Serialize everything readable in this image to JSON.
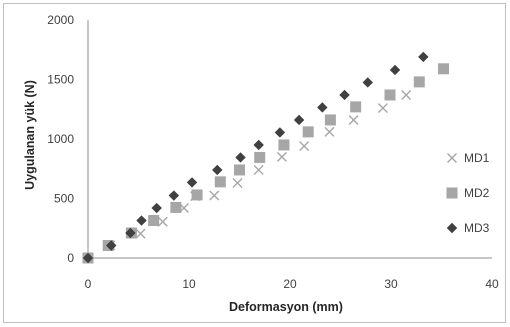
{
  "chart_data": {
    "type": "scatter",
    "title": "",
    "xlabel": "Deformasyon (mm)",
    "ylabel": "Uygulanan yük (N)",
    "xlim": [
      0,
      40
    ],
    "ylim": [
      0,
      2000
    ],
    "xticks": [
      0,
      10,
      20,
      30,
      40
    ],
    "yticks": [
      0,
      500,
      1000,
      1500,
      2000
    ],
    "grid": false,
    "legend": "right",
    "series": [
      {
        "name": "MD1",
        "marker": "x",
        "color": "#a6a6a6",
        "x": [
          0,
          2.2,
          4.3,
          5.2,
          7.4,
          9.5,
          10.6,
          12.5,
          14.8,
          16.9,
          19.2,
          21.4,
          23.9,
          26.3,
          29.2,
          31.5
        ],
        "y": [
          0,
          105,
          210,
          205,
          305,
          420,
          520,
          525,
          630,
          740,
          850,
          940,
          1060,
          1160,
          1260,
          1370
        ]
      },
      {
        "name": "MD2",
        "marker": "square",
        "color": "#a6a6a6",
        "x": [
          0,
          2.0,
          4.3,
          6.5,
          8.7,
          10.8,
          13.1,
          15.0,
          17.0,
          19.4,
          21.8,
          24.0,
          26.5,
          29.9,
          32.8,
          35.2
        ],
        "y": [
          0,
          105,
          210,
          315,
          425,
          530,
          640,
          740,
          845,
          950,
          1060,
          1160,
          1270,
          1370,
          1480,
          1590
        ]
      },
      {
        "name": "MD3",
        "marker": "diamond",
        "color": "#404040",
        "x": [
          0,
          2.3,
          4.2,
          5.3,
          6.8,
          8.5,
          10.3,
          12.8,
          15.1,
          16.9,
          19.0,
          20.9,
          23.2,
          25.4,
          27.7,
          30.4,
          33.2
        ],
        "y": [
          0,
          105,
          210,
          315,
          420,
          525,
          635,
          740,
          845,
          950,
          1055,
          1160,
          1265,
          1370,
          1475,
          1580,
          1690
        ]
      }
    ]
  }
}
